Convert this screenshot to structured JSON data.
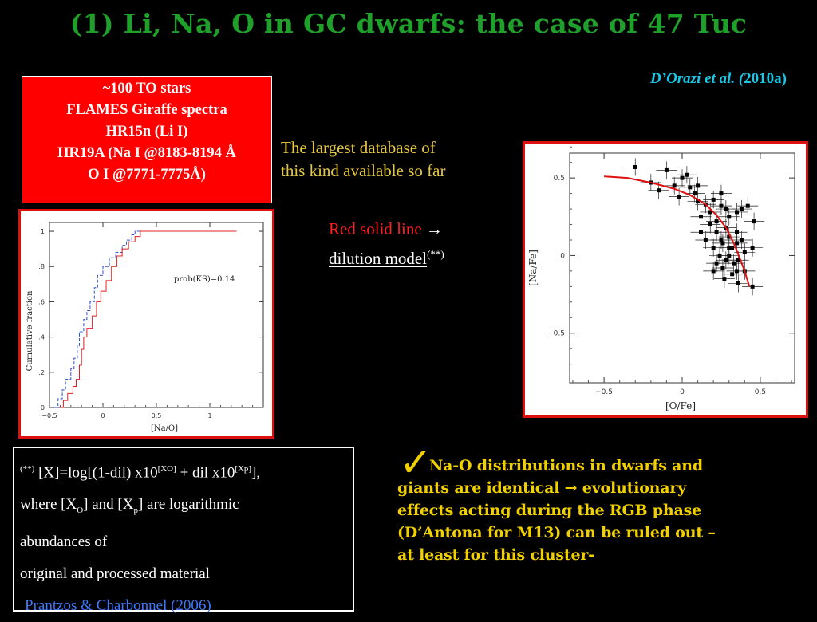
{
  "title": "(1) Li, Na, O in GC dwarfs: the case of 47 Tuc",
  "citation": {
    "authors": "D’Orazi et al. (",
    "year": "2010a)"
  },
  "red_box": {
    "lines": [
      "~100 TO stars",
      "FLAMES Giraffe spectra",
      "HR15n (Li I)",
      "HR19A (Na I @8183-8194 Å",
      "O I @7771-7775Å)"
    ],
    "background": "#ff0000"
  },
  "database_note": [
    "The largest database of",
    "this kind available so far"
  ],
  "dilution_note": {
    "red_text": "Red solid line ",
    "arrow": "→",
    "model_text": "dilution model",
    "footnote_mark": "(**)"
  },
  "formula_box": {
    "mark": "(**)",
    "line1_a": " [X]=log[(1-dil) x10",
    "sup1": "[XO]",
    "line1_b": " + dil x10",
    "sup2": "[Xp]",
    "line1_c": "],",
    "line2_a": "where [X",
    "sub1": "O",
    "line2_b": "] and [X",
    "sub2": "p",
    "line2_c": "] are logarithmic",
    "line3": "abundances of",
    "line4": "original and processed material",
    "reference": "Prantzos & Charbonnel (2006)"
  },
  "conclusion": {
    "check": "✓",
    "lines": [
      "Na-O distributions in dwarfs and",
      "giants are identical → evolutionary",
      "effects acting during the RGB phase",
      "(D’Antona for M13) can be ruled out –",
      "at least for this cluster-"
    ]
  },
  "colors": {
    "title": "#1fa02b",
    "citation": "#18c8e8",
    "conclusion": "#f0d000",
    "frame": "#dd1010",
    "reference": "#3c78ff"
  },
  "chart_data": [
    {
      "type": "line",
      "xlabel": "[Na/O]",
      "ylabel": "Cumulative fraction",
      "annotation": "prob(KS)=0.14",
      "xlim": [
        -0.5,
        1.5
      ],
      "ylim": [
        0,
        1.05
      ],
      "xticks": [
        -0.5,
        0,
        0.5,
        1
      ],
      "xtick_labels": [
        "−0.5",
        "0",
        "0.5",
        "1"
      ],
      "yticks": [
        0,
        0.2,
        0.4,
        0.6,
        0.8,
        1
      ],
      "ytick_labels": [
        "0",
        ".2",
        ".4",
        ".6",
        ".8",
        "1"
      ],
      "series": [
        {
          "color": "#3050d0",
          "style": "dashed",
          "points": [
            [
              -0.45,
              0
            ],
            [
              -0.42,
              0.05
            ],
            [
              -0.38,
              0.1
            ],
            [
              -0.35,
              0.16
            ],
            [
              -0.3,
              0.22
            ],
            [
              -0.27,
              0.28
            ],
            [
              -0.24,
              0.35
            ],
            [
              -0.22,
              0.43
            ],
            [
              -0.18,
              0.5
            ],
            [
              -0.15,
              0.55
            ],
            [
              -0.12,
              0.6
            ],
            [
              -0.08,
              0.68
            ],
            [
              -0.05,
              0.75
            ],
            [
              0.0,
              0.8
            ],
            [
              0.06,
              0.85
            ],
            [
              0.12,
              0.88
            ],
            [
              0.18,
              0.92
            ],
            [
              0.22,
              0.95
            ],
            [
              0.27,
              0.98
            ],
            [
              0.3,
              1.0
            ],
            [
              0.8,
              1.0
            ],
            [
              1.25,
              1.0
            ]
          ]
        },
        {
          "color": "#e02020",
          "style": "solid",
          "points": [
            [
              -0.4,
              0
            ],
            [
              -0.37,
              0.04
            ],
            [
              -0.33,
              0.08
            ],
            [
              -0.28,
              0.12
            ],
            [
              -0.25,
              0.16
            ],
            [
              -0.22,
              0.24
            ],
            [
              -0.2,
              0.33
            ],
            [
              -0.18,
              0.4
            ],
            [
              -0.15,
              0.45
            ],
            [
              -0.1,
              0.52
            ],
            [
              -0.06,
              0.6
            ],
            [
              -0.02,
              0.66
            ],
            [
              0.03,
              0.72
            ],
            [
              0.08,
              0.8
            ],
            [
              0.13,
              0.86
            ],
            [
              0.18,
              0.9
            ],
            [
              0.24,
              0.94
            ],
            [
              0.3,
              0.97
            ],
            [
              0.35,
              1.0
            ],
            [
              0.8,
              1.0
            ],
            [
              1.25,
              1.0
            ]
          ]
        }
      ]
    },
    {
      "type": "scatter",
      "xlabel": "[O/Fe]",
      "ylabel": "[Na/Fe]",
      "xlim": [
        -0.72,
        0.72
      ],
      "ylim": [
        -0.82,
        0.66
      ],
      "xticks": [
        -0.5,
        0,
        0.5
      ],
      "xtick_labels": [
        "−0.5",
        "0",
        "0.5"
      ],
      "yticks": [
        -0.5,
        0,
        0.5
      ],
      "ytick_labels": [
        "−0.5",
        "0",
        "0.5"
      ],
      "points": [
        [
          -0.3,
          0.57
        ],
        [
          -0.2,
          0.47
        ],
        [
          -0.1,
          0.55
        ],
        [
          -0.05,
          0.45
        ],
        [
          0.0,
          0.5
        ],
        [
          0.03,
          0.52
        ],
        [
          0.05,
          0.44
        ],
        [
          -0.15,
          0.42
        ],
        [
          -0.02,
          0.38
        ],
        [
          0.08,
          0.4
        ],
        [
          0.1,
          0.35
        ],
        [
          0.15,
          0.33
        ],
        [
          0.2,
          0.36
        ],
        [
          0.25,
          0.4
        ],
        [
          0.28,
          0.3
        ],
        [
          0.3,
          0.25
        ],
        [
          0.35,
          0.28
        ],
        [
          0.12,
          0.25
        ],
        [
          0.18,
          0.2
        ],
        [
          0.22,
          0.15
        ],
        [
          0.25,
          0.1
        ],
        [
          0.3,
          0.12
        ],
        [
          0.32,
          0.05
        ],
        [
          0.35,
          0.08
        ],
        [
          0.38,
          0.1
        ],
        [
          0.4,
          0.02
        ],
        [
          0.2,
          0.05
        ],
        [
          0.24,
          0.0
        ],
        [
          0.28,
          -0.03
        ],
        [
          0.3,
          0.0
        ],
        [
          0.33,
          -0.05
        ],
        [
          0.26,
          -0.08
        ],
        [
          0.22,
          -0.05
        ],
        [
          0.36,
          -0.03
        ],
        [
          0.4,
          -0.1
        ],
        [
          0.28,
          0.18
        ],
        [
          0.15,
          0.1
        ],
        [
          0.2,
          -0.1
        ],
        [
          0.32,
          -0.12
        ],
        [
          0.35,
          0.15
        ],
        [
          0.45,
          0.05
        ],
        [
          0.18,
          0.28
        ],
        [
          0.42,
          0.32
        ],
        [
          0.46,
          0.22
        ],
        [
          0.3,
          0.05
        ],
        [
          0.27,
          -0.15
        ],
        [
          0.36,
          -0.18
        ],
        [
          0.25,
          0.32
        ],
        [
          0.12,
          0.15
        ],
        [
          0.38,
          0.3
        ],
        [
          0.45,
          -0.2
        ],
        [
          0.1,
          0.45
        ],
        [
          0.22,
          0.22
        ],
        [
          0.35,
          -0.1
        ],
        [
          0.26,
          0.08
        ]
      ],
      "model_curve": {
        "color": "#e01010",
        "points": [
          [
            -0.5,
            0.51
          ],
          [
            -0.35,
            0.5
          ],
          [
            -0.2,
            0.47
          ],
          [
            -0.05,
            0.43
          ],
          [
            0.05,
            0.39
          ],
          [
            0.15,
            0.33
          ],
          [
            0.22,
            0.26
          ],
          [
            0.28,
            0.18
          ],
          [
            0.33,
            0.08
          ],
          [
            0.37,
            -0.02
          ],
          [
            0.4,
            -0.1
          ],
          [
            0.43,
            -0.2
          ]
        ]
      }
    }
  ]
}
